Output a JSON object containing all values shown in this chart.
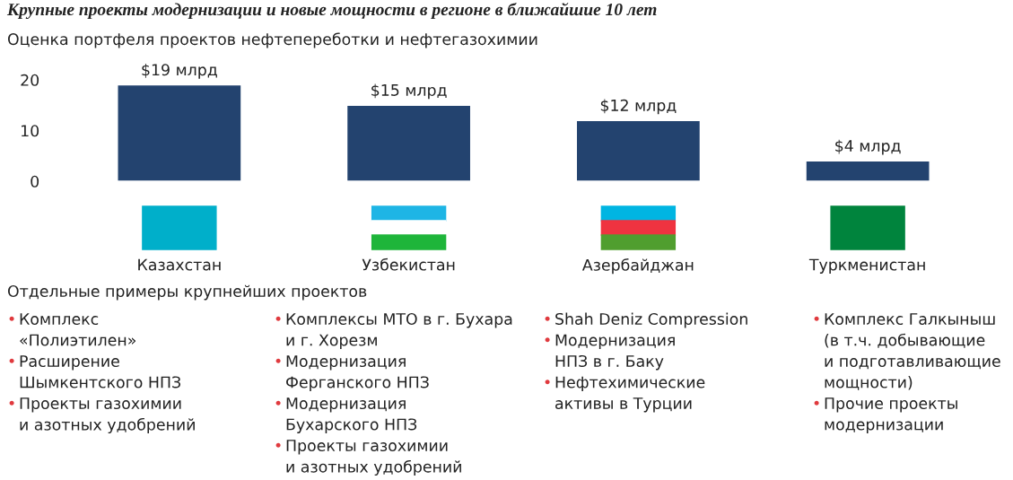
{
  "chart_data": {
    "type": "bar",
    "title": "Крупные проекты модернизации и новые мощности в регионе в ближайшие 10 лет",
    "subtitle": "Оценка портфеля проектов нефтепереботки и нефтегазохимии",
    "categories": [
      "Казахстан",
      "Узбекистан",
      "Азербайджан",
      "Туркменистан"
    ],
    "values": [
      19,
      15,
      12,
      4
    ],
    "value_labels": [
      "$19 млрд",
      "$15 млрд",
      "$12 млрд",
      "$4 млрд"
    ],
    "color": "#23436f",
    "ylim": [
      0,
      20
    ],
    "yticks": [
      0,
      10,
      20
    ],
    "grid": false,
    "annotations": [
      "Отдельные примеры крупнейших проектов",
      "• Комплекс\n«Полиэтилен»\n• Расширение\nШымкентского НПЗ\n• Проекты газохимии\nи азотных удобрений",
      "• Комплексы МТО в г. Бухара\nи г. Хорезм\n• Модернизация\nФерганского НПЗ\n• Модернизация\nБухарского НПЗ\n• Проекты газохимии\nи азотных удобрений",
      "• Shah Deniz Compression\n• Модернизация\nНПЗ в г. Баку\n• Нефтехимические\nактивы в Турции",
      "• Комплекс Галкыныш\n(в т.ч. добывающие\nи подготавливающие\nмощности)\n• Прочие проекты\nмодернизации"
    ]
  }
}
